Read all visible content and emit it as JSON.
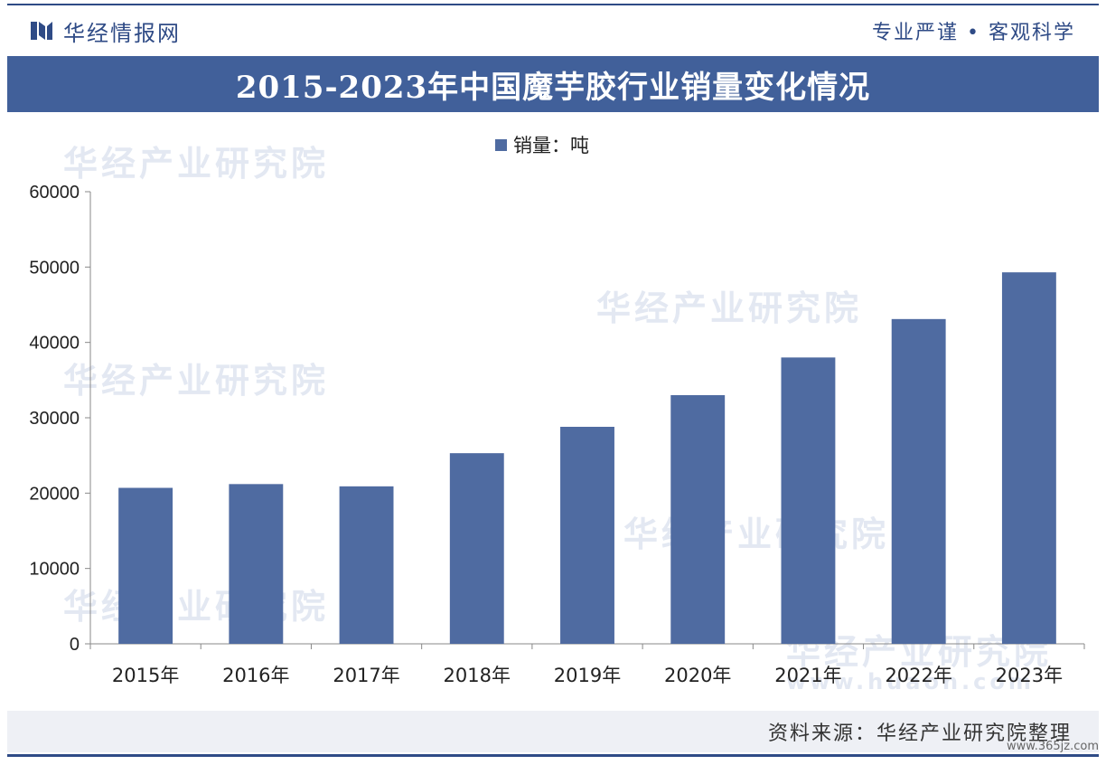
{
  "header": {
    "brand": "华经情报网",
    "slogan": "专业严谨 • 客观科学"
  },
  "watermark": {
    "text": "华经产业研究院",
    "domain": "www.huaon.com",
    "corner": "www.365jz.com"
  },
  "footer": {
    "source": "资料来源：华经产业研究院整理"
  },
  "colors": {
    "bar": "#4f6ba1",
    "title_bg": "#41609a",
    "brand": "#2f4b86"
  },
  "chart_data": {
    "type": "bar",
    "title": "2015-2023年中国魔芋胶行业销量变化情况",
    "categories": [
      "2015年",
      "2016年",
      "2017年",
      "2018年",
      "2019年",
      "2020年",
      "2021年",
      "2022年",
      "2023年"
    ],
    "series": [
      {
        "name": "销量：吨",
        "values": [
          20700,
          21200,
          20900,
          25300,
          28800,
          33000,
          38000,
          43100,
          49300
        ]
      }
    ],
    "ylim": [
      0,
      60000
    ],
    "yticks": [
      0,
      10000,
      20000,
      30000,
      40000,
      50000,
      60000
    ],
    "legend": "top-center",
    "grid": false
  }
}
